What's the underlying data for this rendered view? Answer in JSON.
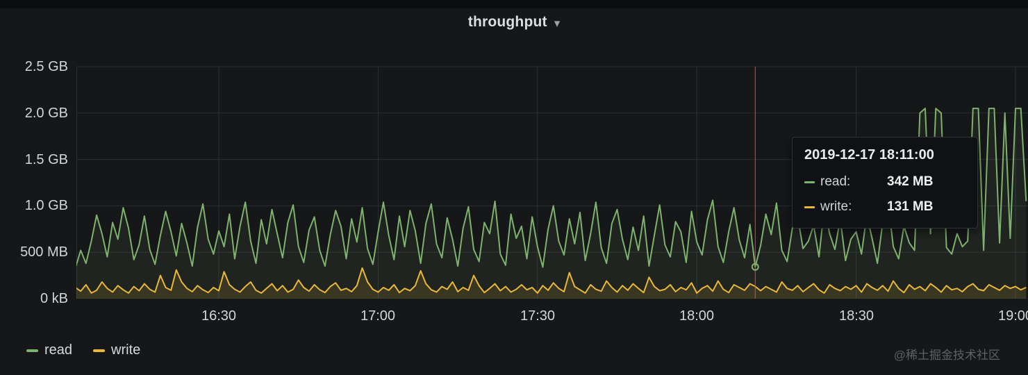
{
  "header": {
    "title": "throughput",
    "caret": "▾"
  },
  "colors": {
    "background": "#161719",
    "grid": "#2c2f34",
    "crosshair": "#e9453a",
    "read": "#7EB26D",
    "write": "#EAB839"
  },
  "chart_data": {
    "type": "line",
    "title": "throughput",
    "grid": true,
    "legend_position": "bottom-left",
    "x_axis": {
      "time_base": "16:00",
      "tick_labels": [
        "16:30",
        "17:00",
        "17:30",
        "18:00",
        "18:30",
        "19:00"
      ],
      "tick_minutes": [
        30,
        60,
        90,
        120,
        150,
        180
      ]
    },
    "y_axis": {
      "tick_labels": [
        "2.5 GB",
        "2.0 GB",
        "1.5 GB",
        "1.0 GB",
        "500 MB",
        "0 kB"
      ],
      "tick_values_mb": [
        2500,
        2000,
        1500,
        1000,
        500,
        0
      ],
      "ylim_mb": [
        0,
        2560
      ]
    },
    "x_start_minute": 3,
    "x_step_minutes": 1,
    "series": [
      {
        "name": "read",
        "color": "#7EB26D",
        "values_mb": [
          330,
          520,
          380,
          620,
          900,
          700,
          450,
          820,
          640,
          980,
          760,
          420,
          580,
          890,
          530,
          370,
          680,
          940,
          720,
          460,
          810,
          600,
          350,
          770,
          1020,
          640,
          480,
          730,
          560,
          910,
          430,
          780,
          1040,
          620,
          380,
          850,
          590,
          960,
          700,
          440,
          820,
          1010,
          560,
          390,
          740,
          880,
          520,
          350,
          690,
          950,
          780,
          430,
          860,
          610,
          980,
          540,
          370,
          720,
          1040,
          680,
          420,
          890,
          560,
          950,
          730,
          380,
          810,
          1020,
          590,
          440,
          870,
          640,
          350,
          760,
          990,
          530,
          400,
          820,
          700,
          1050,
          480,
          360,
          910,
          650,
          780,
          430,
          880,
          560,
          340,
          750,
          1000,
          620,
          470,
          860,
          590,
          930,
          410,
          700,
          1040,
          550,
          380,
          810,
          960,
          640,
          420,
          770,
          520,
          890,
          350,
          680,
          1010,
          580,
          450,
          830,
          720,
          390,
          940,
          610,
          470,
          850,
          1060,
          560,
          390,
          720,
          980,
          630,
          440,
          800,
          342,
          570,
          910,
          690,
          1030,
          520,
          400,
          760,
          880,
          540,
          620,
          790,
          450,
          980,
          700,
          530,
          860,
          410,
          640,
          720,
          480,
          900,
          650,
          380,
          820,
          1040,
          560,
          430,
          780,
          600,
          520,
          2000,
          2050,
          700,
          2050,
          2000,
          550,
          480,
          700,
          560,
          620,
          2050,
          2050,
          520,
          2050,
          2050,
          600,
          2000,
          650,
          2050,
          2050,
          1050
        ]
      },
      {
        "name": "write",
        "color": "#EAB839",
        "values_mb": [
          120,
          80,
          150,
          60,
          90,
          180,
          110,
          70,
          140,
          95,
          60,
          130,
          85,
          160,
          100,
          70,
          250,
          120,
          90,
          310,
          180,
          110,
          75,
          140,
          95,
          65,
          120,
          85,
          290,
          150,
          100,
          70,
          130,
          180,
          90,
          60,
          110,
          160,
          85,
          140,
          70,
          100,
          200,
          120,
          80,
          150,
          95,
          65,
          130,
          170,
          90,
          110,
          75,
          140,
          330,
          180,
          100,
          70,
          120,
          90,
          150,
          65,
          110,
          85,
          140,
          300,
          160,
          95,
          70,
          130,
          100,
          180,
          75,
          120,
          90,
          250,
          140,
          65,
          110,
          160,
          85,
          130,
          70,
          100,
          150,
          95,
          120,
          60,
          140,
          90,
          170,
          110,
          75,
          280,
          130,
          95,
          60,
          150,
          100,
          80,
          190,
          120,
          70,
          140,
          90,
          160,
          110,
          65,
          230,
          130,
          85,
          100,
          150,
          75,
          120,
          95,
          170,
          60,
          110,
          140,
          80,
          190,
          100,
          65,
          150,
          120,
          90,
          160,
          131,
          85,
          130,
          100,
          70,
          180,
          110,
          90,
          140,
          75,
          120,
          160,
          95,
          60,
          150,
          110,
          85,
          130,
          100,
          140,
          70,
          160,
          120,
          90,
          140,
          80,
          190,
          110,
          65,
          150,
          100,
          130,
          85,
          160,
          120,
          70,
          140,
          95,
          110,
          75,
          130,
          160,
          100,
          85,
          150,
          120,
          90,
          140,
          110,
          130,
          95,
          120
        ]
      }
    ]
  },
  "tooltip": {
    "time": "2019-12-17 18:11:00",
    "crosshair_minute": 131,
    "marker_value_mb": 342,
    "rows": [
      {
        "name": "read:",
        "value": "342 MB",
        "color": "#7EB26D"
      },
      {
        "name": "write:",
        "value": "131 MB",
        "color": "#EAB839"
      }
    ]
  },
  "legend": {
    "items": [
      {
        "label": "read",
        "color": "#7EB26D"
      },
      {
        "label": "write",
        "color": "#EAB839"
      }
    ]
  },
  "watermark": "@稀土掘金技术社区"
}
